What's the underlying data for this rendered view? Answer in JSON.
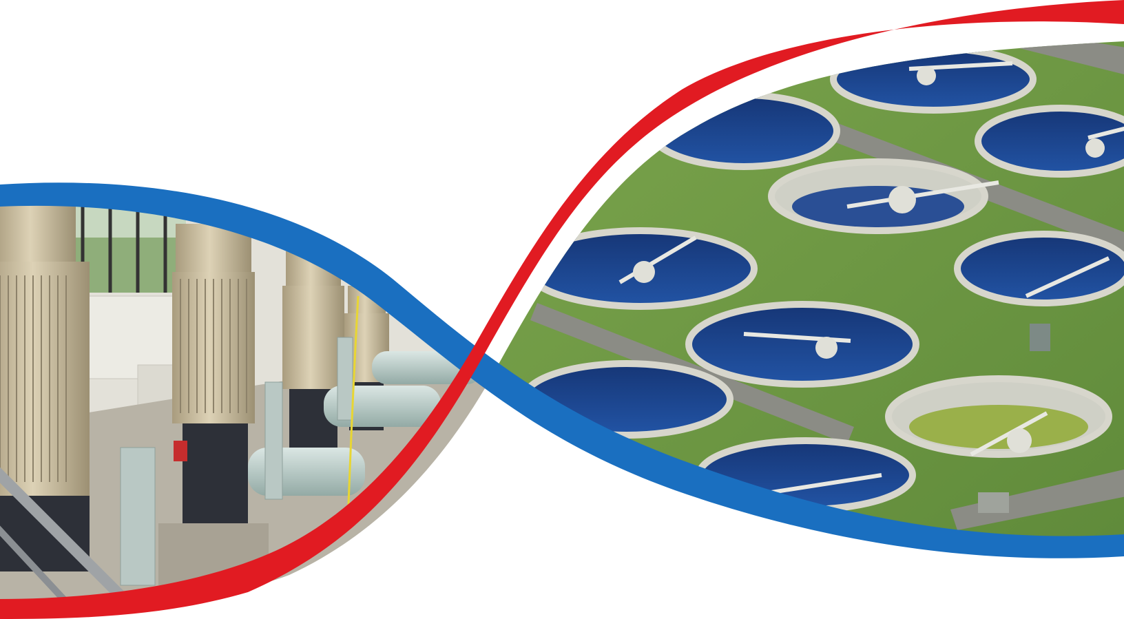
{
  "colors": {
    "background": "#ffffff",
    "blue_ribbon": "#1a6fc0",
    "red_ribbon": "#e11b22",
    "grass": "#6f9a44",
    "grass_dark": "#557b33",
    "basin_water": "#1a3f8a",
    "basin_rim": "#c9c8bf",
    "pump_motor": "#cfc3a6",
    "pump_base": "#2d3038",
    "pipe_green": "#bcd0cc",
    "wall": "#e3e1d9",
    "floor": "#b8b3a6"
  },
  "scene": {
    "left_photo_subject": "pump-room",
    "right_photo_subject": "wastewater-clarifiers"
  }
}
